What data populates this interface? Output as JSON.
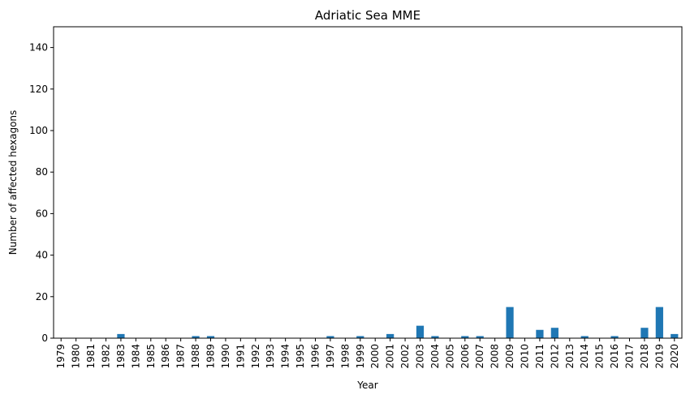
{
  "chart_data": {
    "type": "bar",
    "title": "Adriatic Sea MME",
    "xlabel": "Year",
    "ylabel": "Number of affected hexagons",
    "ylim": [
      0,
      150
    ],
    "yticks": [
      0,
      20,
      40,
      60,
      80,
      100,
      120,
      140
    ],
    "grid": false,
    "color": "#1f77b4",
    "categories": [
      "1979",
      "1980",
      "1981",
      "1982",
      "1983",
      "1984",
      "1985",
      "1986",
      "1987",
      "1988",
      "1989",
      "1990",
      "1991",
      "1992",
      "1993",
      "1994",
      "1995",
      "1996",
      "1997",
      "1998",
      "1999",
      "2000",
      "2001",
      "2002",
      "2003",
      "2004",
      "2005",
      "2006",
      "2007",
      "2008",
      "2009",
      "2010",
      "2011",
      "2012",
      "2013",
      "2014",
      "2015",
      "2016",
      "2017",
      "2018",
      "2019",
      "2020"
    ],
    "values": [
      0,
      0,
      0,
      0,
      2,
      0,
      0,
      0,
      0,
      1,
      1,
      0,
      0,
      0,
      0,
      0,
      0,
      0,
      1,
      0,
      1,
      0,
      2,
      0,
      6,
      1,
      0,
      1,
      1,
      0,
      15,
      0,
      4,
      5,
      0,
      1,
      0,
      1,
      0,
      5,
      15,
      2
    ]
  }
}
